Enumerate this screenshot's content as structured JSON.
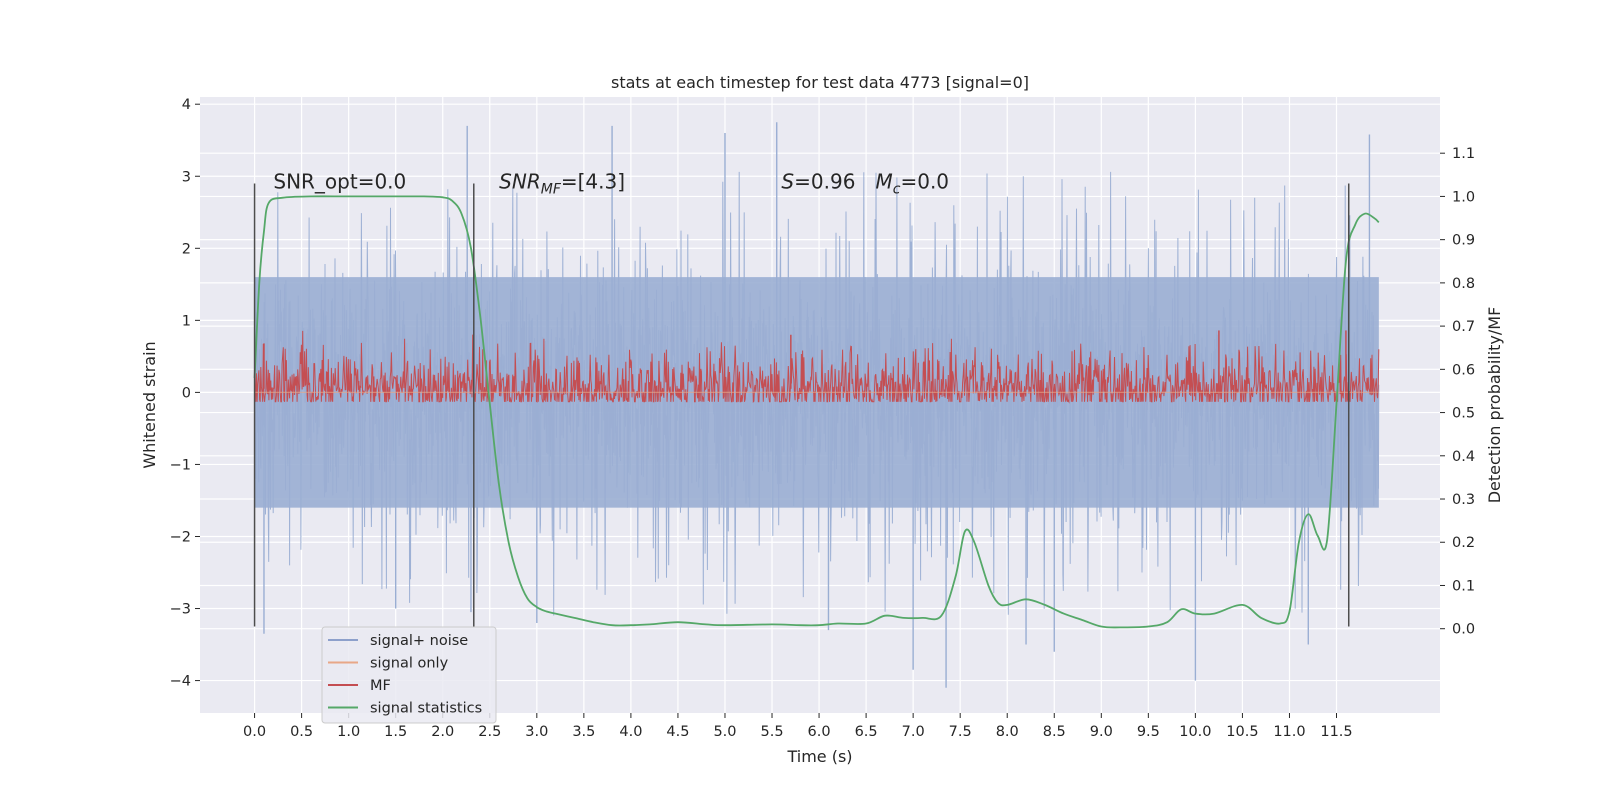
{
  "chart_data": {
    "type": "line",
    "title": "stats at each timestep for test data 4773 [signal=0]",
    "xlabel": "Time (s)",
    "ylabel_left": "Whitened strain",
    "ylabel_right": "Detection probability/MF",
    "xlim": [
      -0.58,
      12.6
    ],
    "ylim_left": [
      -4.45,
      4.1
    ],
    "ylim_right": [
      -0.195,
      1.23
    ],
    "x_ticks": [
      0.0,
      0.5,
      1.0,
      1.5,
      2.0,
      2.5,
      3.0,
      3.5,
      4.0,
      4.5,
      5.0,
      5.5,
      6.0,
      6.5,
      7.0,
      7.5,
      8.0,
      8.5,
      9.0,
      9.5,
      10.0,
      10.5,
      11.0,
      11.5
    ],
    "x_tick_labels": [
      "0.0",
      "0.5",
      "1.0",
      "1.5",
      "2.0",
      "2.5",
      "3.0",
      "3.5",
      "4.0",
      "4.5",
      "5.0",
      "5.5",
      "6.0",
      "6.5",
      "7.0",
      "7.5",
      "8.0",
      "8.5",
      "9.0",
      "9.5",
      "10.0",
      "10.5",
      "11.0",
      "11.5"
    ],
    "y_left_ticks": [
      -4,
      -3,
      -2,
      -1,
      0,
      1,
      2,
      3,
      4
    ],
    "y_left_tick_labels": [
      "−4",
      "−3",
      "−2",
      "−1",
      "0",
      "1",
      "2",
      "3",
      "4"
    ],
    "y_right_ticks": [
      0.0,
      0.1,
      0.2,
      0.3,
      0.4,
      0.5,
      0.6,
      0.7,
      0.8,
      0.9,
      1.0,
      1.1
    ],
    "y_right_tick_labels": [
      "0.0",
      "0.1",
      "0.2",
      "0.3",
      "0.4",
      "0.5",
      "0.6",
      "0.7",
      "0.8",
      "0.9",
      "1.0",
      "1.1"
    ],
    "grid": true,
    "legend_position": "lower-left",
    "noise_series": {
      "name": "signal+ noise",
      "axis": "left",
      "x_range": [
        0.0,
        11.95
      ],
      "band_center": 0.0,
      "band_std": 0.85,
      "typical_extent": [
        -2.3,
        2.3
      ],
      "spikes": [
        {
          "x": 0.1,
          "y": -3.35
        },
        {
          "x": 1.5,
          "y": -3.0
        },
        {
          "x": 2.26,
          "y": 3.7
        },
        {
          "x": 2.3,
          "y": -3.05
        },
        {
          "x": 3.0,
          "y": -3.2
        },
        {
          "x": 3.8,
          "y": 3.7
        },
        {
          "x": 5.0,
          "y": 3.6
        },
        {
          "x": 5.55,
          "y": 3.75
        },
        {
          "x": 6.1,
          "y": -3.3
        },
        {
          "x": 7.0,
          "y": -3.85
        },
        {
          "x": 7.35,
          "y": -4.1
        },
        {
          "x": 8.2,
          "y": -3.5
        },
        {
          "x": 8.5,
          "y": -3.6
        },
        {
          "x": 10.0,
          "y": -4.0
        },
        {
          "x": 11.2,
          "y": -3.5
        },
        {
          "x": 11.85,
          "y": 3.58
        }
      ]
    },
    "series": [
      {
        "name": "signal only",
        "axis": "left",
        "color": "#e8a787",
        "x": [
          0.0,
          11.95
        ],
        "y": [
          0.0,
          0.0
        ]
      },
      {
        "name": "MF",
        "axis": "right",
        "color": "#c44e52",
        "x_range": [
          0.0,
          11.95
        ],
        "baseline": 0.555,
        "noise_amplitude": 0.05,
        "spikes": [
          {
            "x": 0.1,
            "y": 0.66
          },
          {
            "x": 5.7,
            "y": 0.68
          },
          {
            "x": 10.25,
            "y": 0.69
          },
          {
            "x": 11.6,
            "y": 0.69
          }
        ]
      },
      {
        "name": "signal statistics",
        "axis": "right",
        "color": "#55a868",
        "x": [
          0.0,
          0.05,
          0.1,
          0.15,
          0.3,
          0.6,
          1.0,
          1.5,
          1.8,
          2.0,
          2.1,
          2.2,
          2.3,
          2.4,
          2.5,
          2.6,
          2.7,
          2.8,
          2.9,
          3.0,
          3.1,
          3.2,
          3.4,
          3.6,
          3.8,
          4.0,
          4.2,
          4.5,
          4.8,
          5.0,
          5.5,
          5.8,
          6.0,
          6.2,
          6.5,
          6.7,
          6.9,
          7.1,
          7.3,
          7.45,
          7.55,
          7.65,
          7.8,
          7.9,
          8.0,
          8.2,
          8.4,
          8.6,
          8.8,
          9.0,
          9.2,
          9.5,
          9.7,
          9.85,
          10.0,
          10.2,
          10.5,
          10.7,
          10.9,
          11.0,
          11.1,
          11.2,
          11.3,
          11.4,
          11.5,
          11.6,
          11.7,
          11.8,
          11.9,
          11.95
        ],
        "y": [
          0.58,
          0.8,
          0.92,
          0.985,
          0.997,
          1.0,
          1.0,
          1.0,
          1.0,
          0.998,
          0.99,
          0.96,
          0.88,
          0.72,
          0.52,
          0.33,
          0.2,
          0.12,
          0.07,
          0.05,
          0.04,
          0.035,
          0.025,
          0.015,
          0.008,
          0.008,
          0.01,
          0.015,
          0.01,
          0.008,
          0.01,
          0.008,
          0.008,
          0.012,
          0.012,
          0.03,
          0.025,
          0.025,
          0.03,
          0.12,
          0.225,
          0.2,
          0.1,
          0.06,
          0.055,
          0.068,
          0.055,
          0.035,
          0.02,
          0.005,
          0.003,
          0.005,
          0.015,
          0.045,
          0.035,
          0.035,
          0.055,
          0.025,
          0.012,
          0.04,
          0.2,
          0.265,
          0.215,
          0.205,
          0.52,
          0.85,
          0.935,
          0.96,
          0.95,
          0.94
        ]
      }
    ],
    "vertical_lines": [
      0.0,
      2.33,
      11.63
    ],
    "vertical_lines_range": [
      -3.25,
      2.9
    ],
    "annotations": [
      {
        "id": "snr-opt",
        "text": "SNR_opt=0.0",
        "x": 0.2,
        "y": 2.8
      },
      {
        "id": "snr-mf",
        "text": "SNR_MF=[4.3]",
        "italic_part": "SNR",
        "sub": "MF",
        "rest": "=[4.3]",
        "x": 2.6,
        "y": 2.8
      },
      {
        "id": "s-value",
        "text": "S=0.96",
        "italic_part": "S",
        "rest": "=0.96",
        "x": 5.6,
        "y": 2.8
      },
      {
        "id": "mc-value",
        "text": "Mc=0.0",
        "italic_part": "M",
        "sub": "c",
        "rest": "=0.0",
        "x": 6.6,
        "y": 2.8
      }
    ],
    "legend_entries": [
      {
        "label": "signal+ noise",
        "color": "#8da0cb"
      },
      {
        "label": "signal only",
        "color": "#e8a787"
      },
      {
        "label": "MF",
        "color": "#c44e52"
      },
      {
        "label": "signal statistics",
        "color": "#55a868"
      }
    ]
  },
  "colors": {
    "figure_bg": "#ffffff",
    "axes_bg": "#eaeaf2",
    "grid": "#ffffff",
    "text": "#262626",
    "noise_band": "#9aaed3",
    "vline": "#4d4d4d"
  }
}
